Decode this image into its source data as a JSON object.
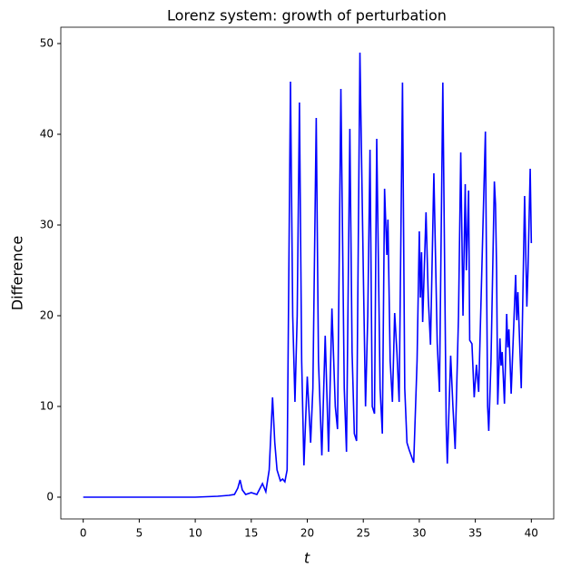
{
  "chart_data": {
    "type": "line",
    "title": "Lorenz system: growth of perturbation",
    "x_label": "t",
    "y_label": "Difference",
    "color": "#0000ff",
    "x": [
      0,
      1,
      2,
      3,
      4,
      5,
      6,
      7,
      8,
      9,
      10,
      11,
      12,
      13,
      13.5,
      13.8,
      14,
      14.2,
      14.5,
      15,
      15.5,
      16,
      16.3,
      16.6,
      16.9,
      17.1,
      17.3,
      17.6,
      17.8,
      18,
      18.2,
      18.5,
      18.7,
      18.9,
      19.1,
      19.3,
      19.5,
      19.7,
      20,
      20.3,
      20.5,
      20.8,
      21,
      21.3,
      21.6,
      21.9,
      22.2,
      22.5,
      22.7,
      23,
      23.3,
      23.5,
      23.8,
      24,
      24.2,
      24.4,
      24.7,
      25,
      25.2,
      25.4,
      25.6,
      25.8,
      26,
      26.2,
      26.5,
      26.7,
      26.9,
      27.1,
      27.2,
      27.4,
      27.6,
      27.8,
      28,
      28.2,
      28.5,
      28.7,
      28.9,
      29.1,
      29.3,
      29.5,
      29.8,
      30,
      30.1,
      30.2,
      30.3,
      30.6,
      30.8,
      31,
      31.3,
      31.6,
      31.8,
      32.1,
      32.4,
      32.5,
      32.8,
      33,
      33.2,
      33.5,
      33.7,
      33.9,
      34.1,
      34.2,
      34.4,
      34.5,
      34.7,
      34.9,
      35.1,
      35.3,
      35.9,
      36.1,
      36.2,
      36.4,
      36.7,
      36.8,
      36.9,
      37.0,
      37.2,
      37.3,
      37.4,
      37.6,
      37.8,
      37.9,
      38.0,
      38.2,
      38.6,
      38.7,
      38.8,
      39.1,
      39.4,
      39.6,
      39.7,
      39.9,
      40
    ],
    "values": [
      0,
      0,
      0,
      0,
      0,
      0,
      0,
      0,
      0,
      0,
      0,
      0.05,
      0.1,
      0.2,
      0.3,
      1.0,
      1.9,
      0.8,
      0.3,
      0.5,
      0.3,
      1.5,
      0.6,
      3,
      11,
      6,
      3,
      1.8,
      2,
      1.7,
      3,
      45.8,
      20,
      10.5,
      20,
      43.5,
      15,
      3.5,
      13.3,
      6,
      12,
      41.8,
      15,
      4.6,
      17.8,
      5,
      20.8,
      10,
      7.5,
      45,
      12,
      5,
      40.6,
      16,
      7,
      6.2,
      49,
      25,
      10,
      20,
      38.3,
      10,
      9.2,
      39.5,
      12,
      7,
      34,
      26.7,
      30.6,
      15,
      10.5,
      20.3,
      16,
      10.5,
      45.7,
      12,
      6,
      5.2,
      4.5,
      3.8,
      15,
      29.3,
      22,
      27,
      19.3,
      31.4,
      22,
      16.8,
      35.7,
      17,
      11.6,
      45.7,
      8,
      3.7,
      15.6,
      10,
      5.3,
      20,
      38,
      20,
      34.5,
      25,
      33.8,
      17.3,
      16.9,
      11,
      14.6,
      11.6,
      40.3,
      10,
      7.3,
      15,
      34.8,
      32.3,
      25,
      10.2,
      17.5,
      14.5,
      16,
      10.3,
      20.2,
      16.5,
      18.5,
      11.4,
      24.5,
      19.5,
      22.6,
      12,
      33.2,
      21,
      25,
      36.2,
      28
    ],
    "xlim": [
      -2,
      42
    ],
    "ylim": [
      -2.4,
      51.8
    ],
    "xticks": [
      0,
      5,
      10,
      15,
      20,
      25,
      30,
      35,
      40
    ],
    "yticks": [
      0,
      10,
      20,
      30,
      40,
      50
    ]
  }
}
